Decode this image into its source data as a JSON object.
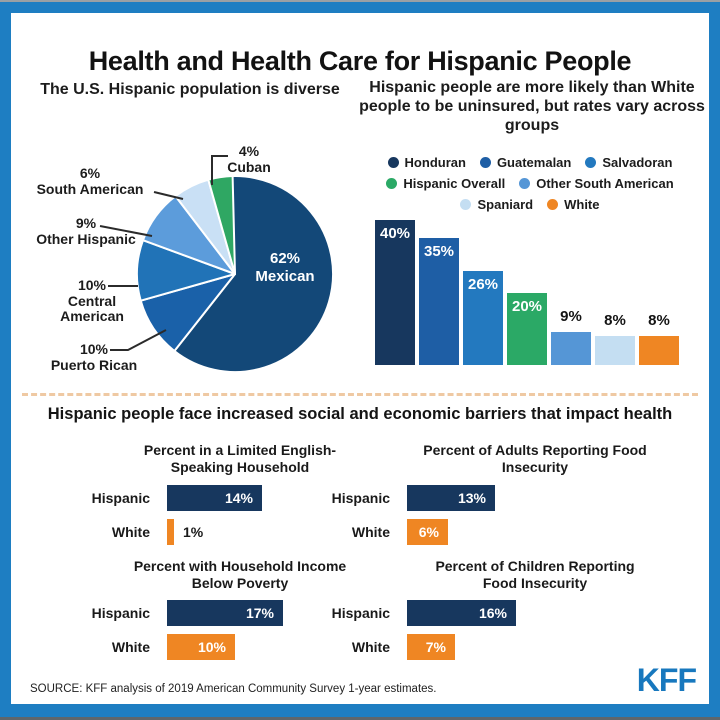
{
  "page": {
    "title": "Health and Health Care for Hispanic People",
    "section_heading": "Hispanic people face increased social and economic barriers that impact health",
    "source": "SOURCE: KFF analysis of 2019 American Community Survey 1-year estimates.",
    "logo_text": "KFF"
  },
  "colors": {
    "frame_blue": "#1E7EC2",
    "kff_logo_blue": "#1878BE",
    "divider_orange": "#EFC9A3",
    "hispanic_bar_navy": "#17375E",
    "white_bar_orange": "#EF8623"
  },
  "chart_data": [
    {
      "id": "hispanic-origin-pie",
      "type": "pie",
      "title": "The U.S. Hispanic population is diverse",
      "unit": "%",
      "direction": "clockwise",
      "start_angle_deg": -5,
      "slices": [
        {
          "label": "Mexican",
          "value": 62,
          "color": "#134878"
        },
        {
          "label": "Puerto Rican",
          "value": 10,
          "color": "#1A61A9"
        },
        {
          "label": "Central American",
          "value": 10,
          "color": "#2173B7"
        },
        {
          "label": "Other Hispanic",
          "value": 9,
          "color": "#5C9CDB"
        },
        {
          "label": "South American",
          "value": 6,
          "color": "#C9E0F5"
        },
        {
          "label": "Cuban",
          "value": 4,
          "color": "#2FA763"
        }
      ]
    },
    {
      "id": "uninsured-rates-bar",
      "type": "bar",
      "title": "Hispanic people are more likely than White people to be uninsured, but rates vary across groups",
      "unit": "%",
      "categories": [
        "Honduran",
        "Guatemalan",
        "Salvadoran",
        "Hispanic Overall",
        "Other South American",
        "Spaniard",
        "White"
      ],
      "values": [
        40,
        35,
        26,
        20,
        9,
        8,
        8
      ],
      "value_labels": [
        "40%",
        "35%",
        "26%",
        "20%",
        "9%",
        "8%",
        "8%"
      ],
      "colors": [
        "#17375E",
        "#1E5EA5",
        "#2379BF",
        "#2BA966",
        "#5596D6",
        "#C4DEF2",
        "#EF8623"
      ],
      "legend_rows": [
        [
          0,
          1,
          2
        ],
        [
          3,
          4
        ],
        [
          5,
          6
        ]
      ],
      "axes_hidden": true,
      "ylim": [
        0,
        42
      ]
    },
    {
      "id": "limited-english-household",
      "type": "bar",
      "orientation": "horizontal",
      "title": "Percent in a Limited English-Speaking Household",
      "title_lines": [
        "Percent in a Limited English-",
        "Speaking Household"
      ],
      "unit": "%",
      "categories": [
        "Hispanic",
        "White"
      ],
      "values": [
        14,
        1
      ],
      "value_labels": [
        "14%",
        "1%"
      ]
    },
    {
      "id": "adults-food-insecurity",
      "type": "bar",
      "orientation": "horizontal",
      "title": "Percent of Adults Reporting Food Insecurity",
      "title_lines": [
        "Percent of Adults Reporting Food",
        "Insecurity"
      ],
      "unit": "%",
      "categories": [
        "Hispanic",
        "White"
      ],
      "values": [
        13,
        6
      ],
      "value_labels": [
        "13%",
        "6%"
      ]
    },
    {
      "id": "income-below-poverty",
      "type": "bar",
      "orientation": "horizontal",
      "title": "Percent with Household Income Below Poverty",
      "title_lines": [
        "Percent with Household Income",
        "Below Poverty"
      ],
      "unit": "%",
      "categories": [
        "Hispanic",
        "White"
      ],
      "values": [
        17,
        10
      ],
      "value_labels": [
        "17%",
        "10%"
      ]
    },
    {
      "id": "children-food-insecurity",
      "type": "bar",
      "orientation": "horizontal",
      "title": "Percent of Children Reporting Food Insecurity",
      "title_lines": [
        "Percent of Children Reporting",
        "Food Insecurity"
      ],
      "unit": "%",
      "categories": [
        "Hispanic",
        "White"
      ],
      "values": [
        16,
        7
      ],
      "value_labels": [
        "16%",
        "7%"
      ]
    }
  ]
}
